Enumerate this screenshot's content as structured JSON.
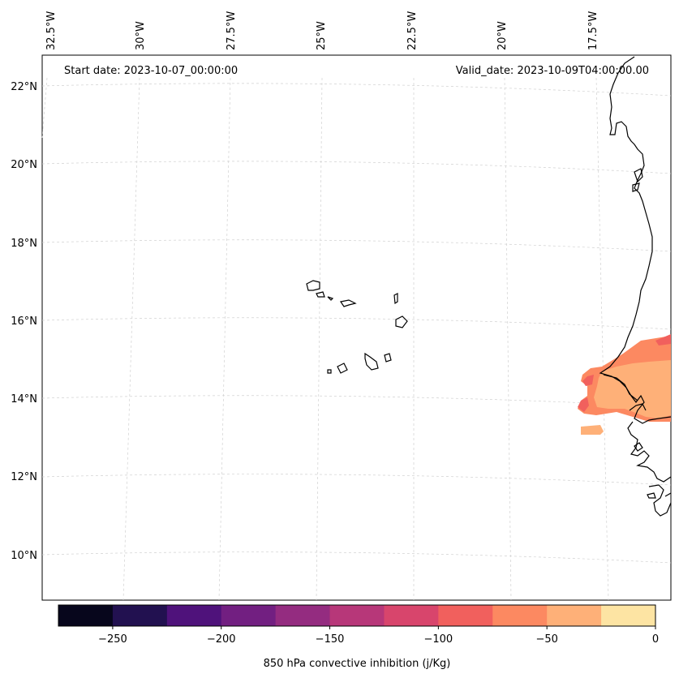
{
  "header": {
    "start_date": "Start date: 2023-10-07_00:00:00",
    "valid_date": "Valid_date: 2023-10-09T04:00:00.00"
  },
  "lon_labels": [
    "32.5°W",
    "30°W",
    "27.5°W",
    "25°W",
    "22.5°W",
    "20°W",
    "17.5°W"
  ],
  "lat_labels": [
    "22°N",
    "20°N",
    "18°N",
    "16°N",
    "14°N",
    "12°N",
    "10°N"
  ],
  "colorbar": {
    "title": "850 hPa convective inhibition (j/Kg)",
    "tick_labels": [
      "−250",
      "−200",
      "−150",
      "−100",
      "−50",
      "0"
    ],
    "colors": [
      "#07061c",
      "#221150",
      "#4f127b",
      "#721f81",
      "#942c80",
      "#b73779",
      "#d8456c",
      "#f1605d",
      "#fc8961",
      "#feb078",
      "#fde4a3"
    ]
  }
}
